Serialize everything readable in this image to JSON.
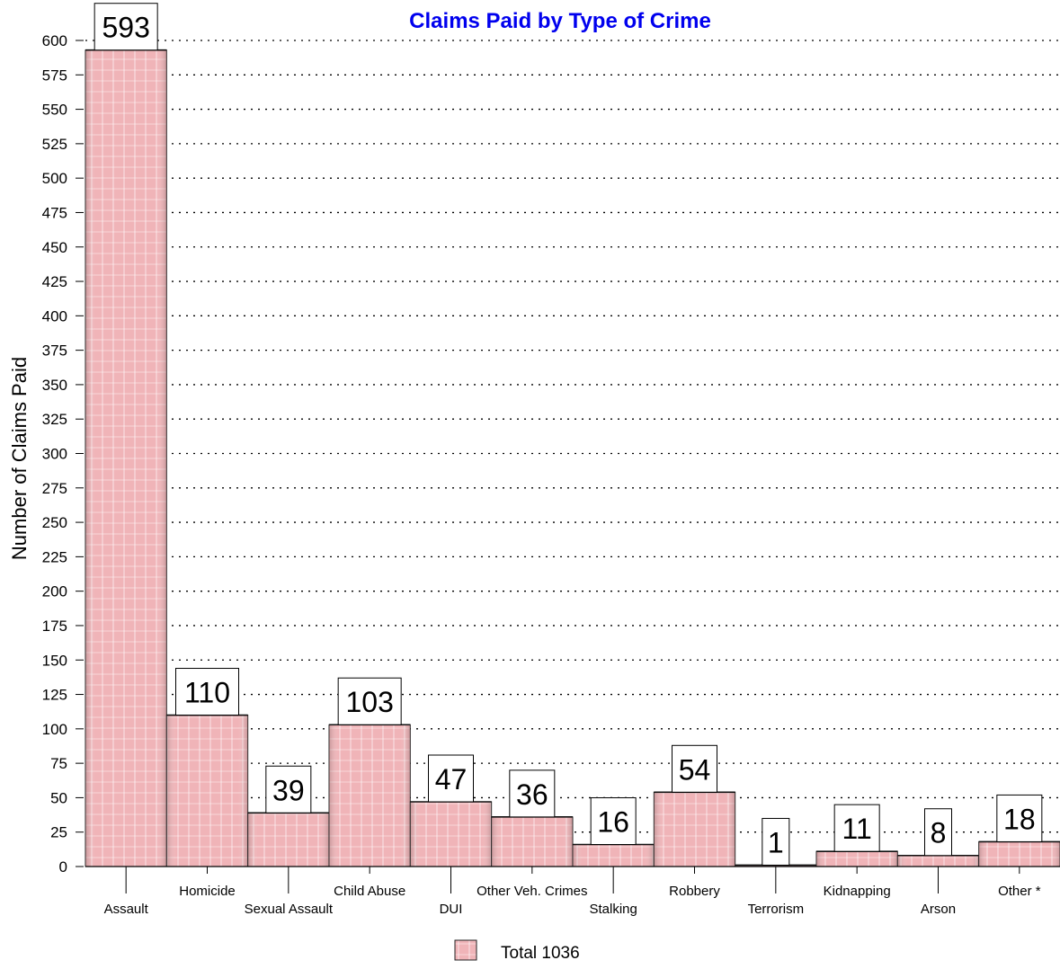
{
  "chart_data": {
    "type": "bar",
    "title": "Claims Paid by Type of Crime",
    "ylabel": "Number of Claims Paid",
    "xlabel": "",
    "ylim": [
      0,
      600
    ],
    "yticks": [
      0,
      25,
      50,
      75,
      100,
      125,
      150,
      175,
      200,
      225,
      250,
      275,
      300,
      325,
      350,
      375,
      400,
      425,
      450,
      475,
      500,
      525,
      550,
      575,
      600
    ],
    "grid": true,
    "legend_position": "bottom",
    "categories": [
      "Assault",
      "Homicide",
      "Sexual Assault",
      "Child Abuse",
      "DUI",
      "Other Veh. Crimes",
      "Stalking",
      "Robbery",
      "Terrorism",
      "Kidnapping",
      "Arson",
      "Other *"
    ],
    "series": [
      {
        "name": "Total 1036",
        "values": [
          593,
          110,
          39,
          103,
          47,
          36,
          16,
          54,
          1,
          11,
          8,
          18
        ]
      }
    ],
    "data_labels": [
      "593",
      "110",
      "39",
      "103",
      "47",
      "36",
      "16",
      "54",
      "1",
      "11",
      "8",
      "18"
    ]
  },
  "colors": {
    "title": "#0000ee",
    "bar_fill": "#f0b4b8",
    "bar_stripe": "#ffffff",
    "bar_edge": "#222222",
    "grid": "#000000"
  }
}
